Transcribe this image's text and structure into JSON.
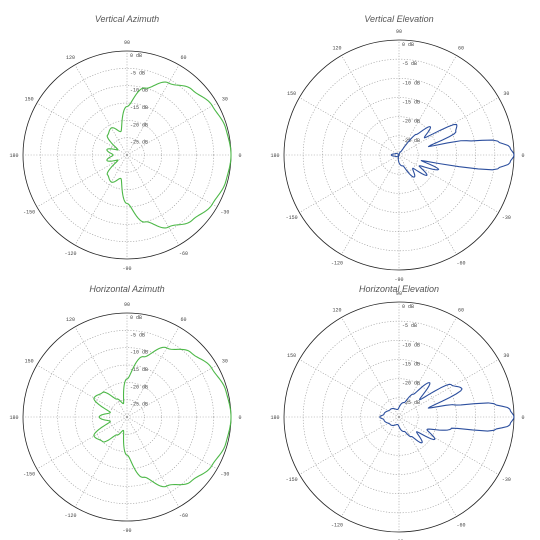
{
  "chart_data": [
    {
      "type": "polar",
      "title": "Vertical Azimuth",
      "color": "#4db848",
      "r_ticks": [
        "0 dB",
        "-5 dB",
        "-10 dB",
        "-15 dB",
        "-20 dB",
        "-25 dB"
      ],
      "r_range_db": [
        -30,
        0
      ],
      "angle_ticks": [
        0,
        30,
        60,
        90,
        120,
        150,
        180,
        -150,
        -120,
        -90,
        -60,
        -30
      ],
      "pattern": [
        {
          "angle": 0,
          "db": 0
        },
        {
          "angle": 15,
          "db": -0.5
        },
        {
          "angle": 30,
          "db": -1.6
        },
        {
          "angle": 45,
          "db": -3.4
        },
        {
          "angle": 60,
          "db": -6
        },
        {
          "angle": 75,
          "db": -10
        },
        {
          "angle": 90,
          "db": -16
        },
        {
          "angle": 105,
          "db": -23
        },
        {
          "angle": 120,
          "db": -21
        },
        {
          "angle": 135,
          "db": -22
        },
        {
          "angle": 150,
          "db": -27
        },
        {
          "angle": 165,
          "db": -24
        },
        {
          "angle": 180,
          "db": -26
        },
        {
          "angle": -165,
          "db": -24
        },
        {
          "angle": -150,
          "db": -27
        },
        {
          "angle": -135,
          "db": -22
        },
        {
          "angle": -120,
          "db": -21
        },
        {
          "angle": -105,
          "db": -23
        },
        {
          "angle": -90,
          "db": -16
        },
        {
          "angle": -75,
          "db": -10
        },
        {
          "angle": -60,
          "db": -6
        },
        {
          "angle": -45,
          "db": -3.4
        },
        {
          "angle": -30,
          "db": -1.6
        },
        {
          "angle": -15,
          "db": -0.5
        }
      ]
    },
    {
      "type": "polar",
      "title": "Vertical Elevation",
      "color": "#2c4f9e",
      "r_ticks": [
        "0 dB",
        "-5 dB",
        "-10 dB",
        "-15 dB",
        "-20 dB",
        "-25 dB"
      ],
      "r_range_db": [
        -30,
        0
      ],
      "angle_ticks": [
        0,
        30,
        60,
        90,
        120,
        150,
        180,
        -150,
        -120,
        -90,
        -60,
        -30
      ],
      "pattern": [
        {
          "angle": 0,
          "db": 0
        },
        {
          "angle": 4,
          "db": -1
        },
        {
          "angle": 8,
          "db": -4
        },
        {
          "angle": 12,
          "db": -12
        },
        {
          "angle": 16,
          "db": -22
        },
        {
          "angle": 22,
          "db": -14
        },
        {
          "angle": 28,
          "db": -13
        },
        {
          "angle": 34,
          "db": -22
        },
        {
          "angle": 42,
          "db": -19
        },
        {
          "angle": 50,
          "db": -23
        },
        {
          "angle": 60,
          "db": -29
        },
        {
          "angle": 90,
          "db": -30
        },
        {
          "angle": 120,
          "db": -30
        },
        {
          "angle": 160,
          "db": -29
        },
        {
          "angle": 180,
          "db": -28
        },
        {
          "angle": -160,
          "db": -29
        },
        {
          "angle": -120,
          "db": -30
        },
        {
          "angle": -70,
          "db": -27
        },
        {
          "angle": -55,
          "db": -23
        },
        {
          "angle": -44,
          "db": -25
        },
        {
          "angle": -36,
          "db": -21
        },
        {
          "angle": -28,
          "db": -24
        },
        {
          "angle": -20,
          "db": -19
        },
        {
          "angle": -14,
          "db": -24
        },
        {
          "angle": -8,
          "db": -4
        },
        {
          "angle": -4,
          "db": -1
        }
      ]
    },
    {
      "type": "polar",
      "title": "Horizontal Azimuth",
      "color": "#4db848",
      "r_ticks": [
        "0 dB",
        "-5 dB",
        "-10 dB",
        "-15 dB",
        "-20 dB",
        "-25 dB"
      ],
      "r_range_db": [
        -30,
        0
      ],
      "angle_ticks": [
        0,
        30,
        60,
        90,
        120,
        150,
        180,
        -150,
        -120,
        -90,
        -60,
        -30
      ],
      "pattern": [
        {
          "angle": 0,
          "db": 0
        },
        {
          "angle": 15,
          "db": -0.5
        },
        {
          "angle": 30,
          "db": -1.8
        },
        {
          "angle": 45,
          "db": -3.8
        },
        {
          "angle": 60,
          "db": -7
        },
        {
          "angle": 75,
          "db": -12
        },
        {
          "angle": 90,
          "db": -19
        },
        {
          "angle": 105,
          "db": -26
        },
        {
          "angle": 120,
          "db": -24
        },
        {
          "angle": 135,
          "db": -20
        },
        {
          "angle": 150,
          "db": -19
        },
        {
          "angle": 165,
          "db": -25
        },
        {
          "angle": 180,
          "db": -22
        },
        {
          "angle": -165,
          "db": -25
        },
        {
          "angle": -150,
          "db": -19
        },
        {
          "angle": -135,
          "db": -20
        },
        {
          "angle": -120,
          "db": -24
        },
        {
          "angle": -105,
          "db": -26
        },
        {
          "angle": -90,
          "db": -19
        },
        {
          "angle": -75,
          "db": -12
        },
        {
          "angle": -60,
          "db": -7
        },
        {
          "angle": -45,
          "db": -3.8
        },
        {
          "angle": -30,
          "db": -1.8
        },
        {
          "angle": -15,
          "db": -0.5
        }
      ]
    },
    {
      "type": "polar",
      "title": "Horizontal Elevation",
      "color": "#2c4f9e",
      "r_ticks": [
        "0 dB",
        "-5 dB",
        "-10 dB",
        "-15 dB",
        "-20 dB",
        "-25 dB"
      ],
      "r_range_db": [
        -30,
        0
      ],
      "angle_ticks": [
        0,
        30,
        60,
        90,
        120,
        150,
        180,
        -150,
        -120,
        -90,
        -60,
        -30
      ],
      "pattern": [
        {
          "angle": 0,
          "db": 0
        },
        {
          "angle": 4,
          "db": -1
        },
        {
          "angle": 8,
          "db": -5
        },
        {
          "angle": 12,
          "db": -15
        },
        {
          "angle": 17,
          "db": -22
        },
        {
          "angle": 24,
          "db": -12
        },
        {
          "angle": 32,
          "db": -14
        },
        {
          "angle": 40,
          "db": -23
        },
        {
          "angle": 48,
          "db": -18
        },
        {
          "angle": 58,
          "db": -23
        },
        {
          "angle": 70,
          "db": -26
        },
        {
          "angle": 100,
          "db": -28
        },
        {
          "angle": 140,
          "db": -27
        },
        {
          "angle": 170,
          "db": -26
        },
        {
          "angle": 180,
          "db": -25
        },
        {
          "angle": -170,
          "db": -26
        },
        {
          "angle": -140,
          "db": -27
        },
        {
          "angle": -100,
          "db": -28
        },
        {
          "angle": -70,
          "db": -26
        },
        {
          "angle": -58,
          "db": -24
        },
        {
          "angle": -48,
          "db": -21
        },
        {
          "angle": -40,
          "db": -24
        },
        {
          "angle": -32,
          "db": -19
        },
        {
          "angle": -24,
          "db": -22
        },
        {
          "angle": -12,
          "db": -16
        },
        {
          "angle": -8,
          "db": -5
        },
        {
          "angle": -4,
          "db": -1
        }
      ]
    }
  ]
}
